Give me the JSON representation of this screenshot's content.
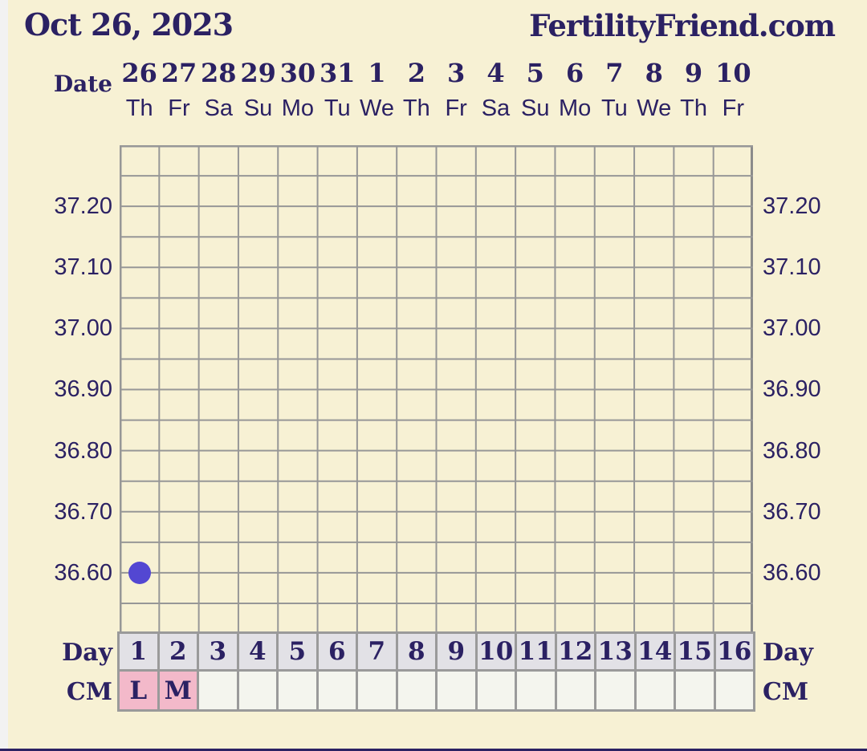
{
  "header": {
    "title": "Oct 26, 2023",
    "brand": "FertilityFriend.com"
  },
  "axis_labels": {
    "date": "Date",
    "day_left": "Day",
    "day_right": "Day",
    "cm_left": "CM",
    "cm_right": "CM"
  },
  "chart_data": {
    "type": "line",
    "title": "Oct 26, 2023",
    "x_dates": [
      "26",
      "27",
      "28",
      "29",
      "30",
      "31",
      "1",
      "2",
      "3",
      "4",
      "5",
      "6",
      "7",
      "8",
      "9",
      "10"
    ],
    "x_dow": [
      "Th",
      "Fr",
      "Sa",
      "Su",
      "Mo",
      "Tu",
      "We",
      "Th",
      "Fr",
      "Sa",
      "Su",
      "Mo",
      "Tu",
      "We",
      "Th",
      "Fr"
    ],
    "y_ticks": [
      "37.20",
      "37.10",
      "37.00",
      "36.90",
      "36.80",
      "36.70",
      "36.60"
    ],
    "y_max": 37.3,
    "y_min": 36.5,
    "y_step": 0.05,
    "num_days": 16,
    "points": [
      {
        "day": 1,
        "temp": 36.6
      }
    ],
    "day_numbers": [
      "1",
      "2",
      "3",
      "4",
      "5",
      "6",
      "7",
      "8",
      "9",
      "10",
      "11",
      "12",
      "13",
      "14",
      "15",
      "16"
    ],
    "cm_values": [
      "L",
      "M",
      "",
      "",
      "",
      "",
      "",
      "",
      "",
      "",
      "",
      "",
      "",
      "",
      "",
      ""
    ],
    "grid_on": true
  },
  "colors": {
    "background": "#f7f1d4",
    "navy_text": "#2b2163",
    "grid_line": "#979797",
    "grid_border": "#8b8b8b",
    "day_cell_bg": "#e2e1e6",
    "cm_filled_bg": "#f3b9ca",
    "cm_empty_bg": "#f4f5ee",
    "point_fill": "#5347d2",
    "edge_strip": "#f2f2f2",
    "bottom_line": "#2b2163"
  }
}
